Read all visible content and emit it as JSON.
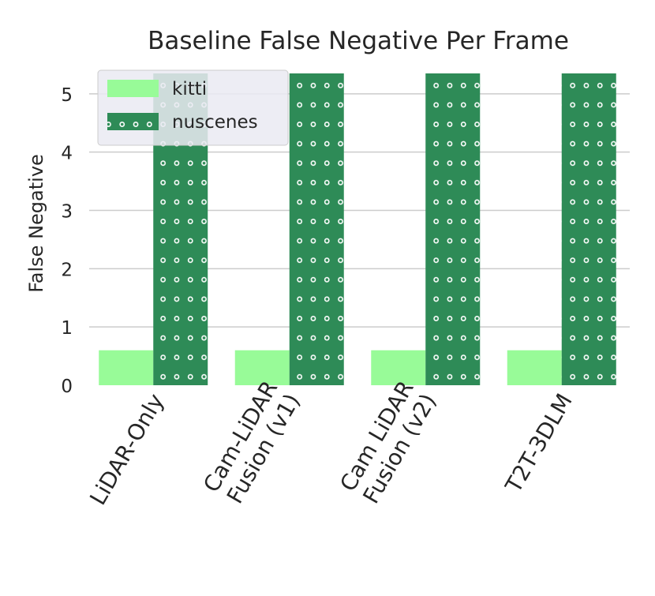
{
  "chart_data": {
    "type": "bar",
    "title": "Baseline False Negative Per Frame",
    "xlabel": "",
    "ylabel": "False Negative",
    "categories": [
      "LiDAR-Only",
      "Cam-LiDAR Fusion (v1)",
      "Cam LiDAR Fusion (v2)",
      "T2T-3DLM"
    ],
    "category_lines": [
      [
        "LiDAR-Only"
      ],
      [
        "Cam-LiDAR",
        "Fusion (v1)"
      ],
      [
        "Cam LiDAR",
        "Fusion (v2)"
      ],
      [
        "T2T-3DLM"
      ]
    ],
    "series": [
      {
        "name": "kitti",
        "values": [
          0.6,
          0.6,
          0.6,
          0.6
        ],
        "color": "#98fb98",
        "pattern": "solid"
      },
      {
        "name": "nuscenes",
        "values": [
          5.35,
          5.35,
          5.35,
          5.35
        ],
        "color": "#2e8b57",
        "pattern": "dots"
      }
    ],
    "ylim": [
      0,
      5.35
    ],
    "yticks": [
      0,
      1,
      2,
      3,
      4,
      5
    ],
    "grid": true,
    "legend_position": "top-left"
  }
}
